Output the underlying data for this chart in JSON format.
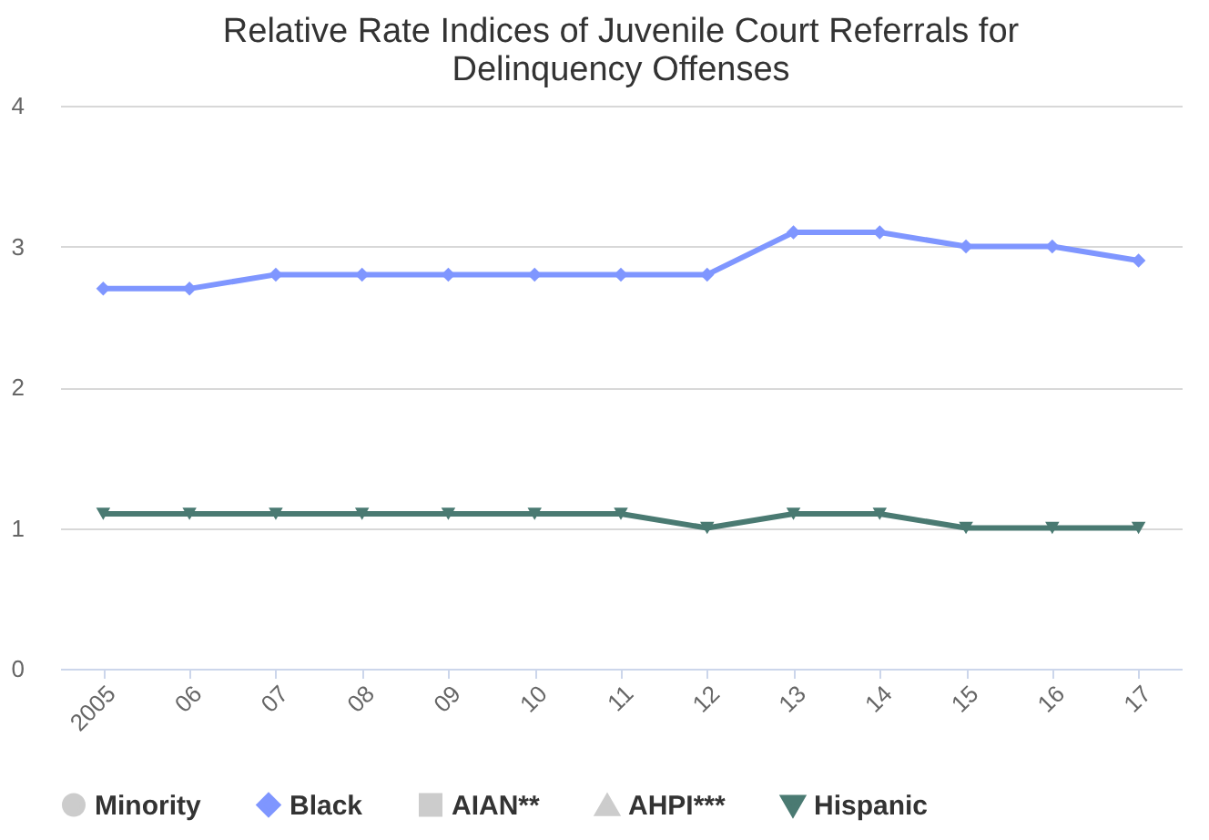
{
  "chart_data": {
    "type": "line",
    "title": "Relative Rate Indices of Juvenile Court Referrals for Delinquency Offenses",
    "categories": [
      "2005",
      "06",
      "07",
      "08",
      "09",
      "10",
      "11",
      "12",
      "13",
      "14",
      "15",
      "16",
      "17"
    ],
    "series": [
      {
        "name": "Minority",
        "color": "#cccccc",
        "marker": "circle",
        "values": [
          null,
          null,
          null,
          null,
          null,
          null,
          null,
          null,
          null,
          null,
          null,
          null,
          null
        ]
      },
      {
        "name": "Black",
        "color": "#7f96ff",
        "marker": "diamond",
        "values": [
          2.7,
          2.7,
          2.8,
          2.8,
          2.8,
          2.8,
          2.8,
          2.8,
          3.1,
          3.1,
          3.0,
          3.0,
          2.9
        ]
      },
      {
        "name": "AIAN**",
        "color": "#cccccc",
        "marker": "square",
        "values": [
          null,
          null,
          null,
          null,
          null,
          null,
          null,
          null,
          null,
          null,
          null,
          null,
          null
        ]
      },
      {
        "name": "AHPI***",
        "color": "#cccccc",
        "marker": "triangle",
        "values": [
          null,
          null,
          null,
          null,
          null,
          null,
          null,
          null,
          null,
          null,
          null,
          null,
          null
        ]
      },
      {
        "name": "Hispanic",
        "color": "#4a7a72",
        "marker": "triangle-down",
        "values": [
          1.1,
          1.1,
          1.1,
          1.1,
          1.1,
          1.1,
          1.1,
          1.0,
          1.1,
          1.1,
          1.0,
          1.0,
          1.0
        ]
      }
    ],
    "ylim": [
      0,
      4
    ],
    "yticks": [
      0,
      1,
      2,
      3,
      4
    ],
    "grid": "y",
    "legend": "bottom"
  }
}
